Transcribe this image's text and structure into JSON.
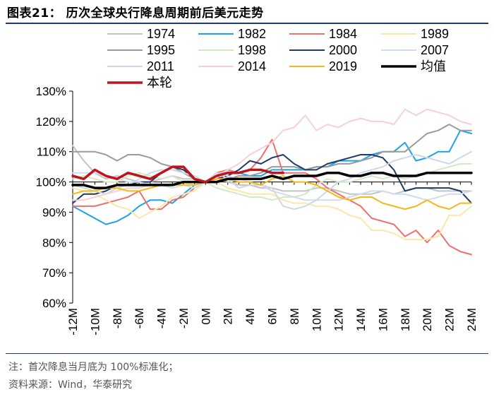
{
  "figure": {
    "title": "图表21：  历次全球央行降息周期前后美元走势",
    "note": "注：首次降息当月底为 100%标准化；",
    "source": "资料来源：Wind，华泰研究"
  },
  "chart_data": {
    "type": "line",
    "title": "历次全球央行降息周期前后美元走势",
    "xlabel": "",
    "ylabel": "",
    "ylim": [
      60,
      130
    ],
    "yticks": [
      60,
      70,
      80,
      90,
      100,
      110,
      120,
      130
    ],
    "ytick_format": "percent",
    "grid": false,
    "legend_position": "top",
    "x": [
      -12,
      -11,
      -10,
      -9,
      -8,
      -7,
      -6,
      -5,
      -4,
      -3,
      -2,
      -1,
      0,
      1,
      2,
      3,
      4,
      5,
      6,
      7,
      8,
      9,
      10,
      11,
      12,
      13,
      14,
      15,
      16,
      17,
      18,
      19,
      20,
      21,
      22,
      23,
      24
    ],
    "xtick_values": [
      -12,
      -10,
      -8,
      -6,
      -4,
      -2,
      0,
      2,
      4,
      6,
      8,
      10,
      12,
      14,
      16,
      18,
      20,
      22,
      24
    ],
    "xtick_labels": [
      "-12M",
      "-10M",
      "-8M",
      "-6M",
      "-4M",
      "-2M",
      "0M",
      "2M",
      "4M",
      "6M",
      "8M",
      "10M",
      "12M",
      "14M",
      "16M",
      "18M",
      "20M",
      "22M",
      "24M"
    ],
    "series": [
      {
        "name": "1974",
        "color": "#c3c3c3",
        "width": 2,
        "values": [
          112,
          107,
          103,
          101,
          102,
          101,
          100,
          100,
          101,
          102,
          101,
          101,
          100,
          102,
          100,
          99,
          99,
          98,
          98,
          97,
          97,
          97,
          98,
          98,
          97,
          96,
          96,
          96,
          97,
          96,
          97,
          98,
          98,
          97,
          97,
          97,
          97
        ]
      },
      {
        "name": "1982",
        "color": "#1aa3e8",
        "width": 2,
        "values": [
          92,
          90,
          88,
          86,
          87,
          89,
          92,
          94,
          94,
          93,
          96,
          99,
          100,
          102,
          103,
          103,
          102,
          102,
          104,
          104,
          104,
          104,
          105,
          105,
          107,
          107,
          107,
          109,
          110,
          110,
          113,
          107,
          108,
          110,
          110,
          117,
          116
        ]
      },
      {
        "name": "1984",
        "color": "#f06e6e",
        "width": 2,
        "values": [
          92,
          92,
          92,
          93,
          94,
          95,
          97,
          91,
          91,
          94,
          95,
          98,
          100,
          103,
          104,
          103,
          104,
          108,
          114,
          103,
          103,
          103,
          101,
          98,
          96,
          94,
          92,
          88,
          87,
          86,
          82,
          84,
          80,
          84,
          79,
          77,
          76
        ]
      },
      {
        "name": "1989",
        "color": "#fbe7a8",
        "width": 2,
        "values": [
          98,
          97,
          96,
          94,
          92,
          91,
          88,
          90,
          92,
          95,
          96,
          97,
          100,
          100,
          98,
          97,
          96,
          96,
          96,
          94,
          93,
          93,
          92,
          92,
          91,
          89,
          88,
          84,
          84,
          83,
          81,
          81,
          81,
          82,
          89,
          89,
          92
        ]
      },
      {
        "name": "1995",
        "color": "#9b9b9b",
        "width": 2,
        "values": [
          110,
          110,
          110,
          109,
          107,
          109,
          109,
          108,
          106,
          105,
          103,
          101,
          100,
          100,
          101,
          102,
          102,
          103,
          105,
          105,
          105,
          104,
          105,
          105,
          106,
          106,
          107,
          108,
          110,
          110,
          110,
          113,
          116,
          117,
          119,
          117,
          117
        ]
      },
      {
        "name": "1998",
        "color": "#d3e9c4",
        "width": 2,
        "values": [
          101,
          102,
          101,
          100,
          100,
          102,
          103,
          102,
          101,
          102,
          100,
          99,
          100,
          98,
          97,
          96,
          95,
          95,
          94,
          95,
          95,
          96,
          99,
          101,
          100,
          100,
          101,
          102,
          101,
          102,
          101,
          102,
          103,
          104,
          105,
          106,
          106
        ]
      },
      {
        "name": "2000",
        "color": "#1f3a68",
        "width": 2,
        "values": [
          93,
          96,
          96,
          97,
          99,
          99,
          100,
          100,
          103,
          105,
          104,
          101,
          100,
          101,
          102,
          104,
          107,
          106,
          108,
          109,
          106,
          104,
          104,
          106,
          107,
          108,
          109,
          109,
          108,
          104,
          97,
          98,
          98,
          98,
          98,
          97,
          93
        ]
      },
      {
        "name": "2007",
        "color": "#cfdcf0",
        "width": 2,
        "values": [
          103,
          103,
          103,
          102,
          101,
          100,
          100,
          99,
          99,
          98,
          99,
          98,
          100,
          103,
          102,
          101,
          100,
          99,
          97,
          96,
          95,
          94,
          94,
          94,
          94,
          95,
          96,
          97,
          97,
          96,
          96,
          95,
          94,
          95,
          96,
          96,
          97
        ]
      },
      {
        "name": "2011",
        "color": "#d0d8e4",
        "width": 2,
        "values": [
          99,
          98,
          97,
          96,
          98,
          99,
          101,
          103,
          104,
          104,
          103,
          102,
          100,
          103,
          101,
          98,
          99,
          99,
          98,
          92,
          91,
          92,
          94,
          97,
          100,
          101,
          103,
          104,
          105,
          107,
          108,
          109,
          108,
          107,
          106,
          108,
          110
        ]
      },
      {
        "name": "2014",
        "color": "#f8cfd6",
        "width": 2,
        "values": [
          94,
          94,
          95,
          96,
          97,
          98,
          98,
          99,
          99,
          99,
          100,
          100,
          100,
          102,
          104,
          106,
          109,
          111,
          113,
          117,
          118,
          122,
          117,
          119,
          118,
          120,
          121,
          120,
          120,
          119,
          124,
          122,
          124,
          123,
          122,
          120,
          119
        ]
      },
      {
        "name": "2019",
        "color": "#f6b718",
        "width": 2,
        "values": [
          96,
          97,
          97,
          98,
          98,
          97,
          97,
          98,
          99,
          99,
          99,
          99,
          100,
          101,
          101,
          100,
          100,
          99,
          101,
          102,
          100,
          100,
          99,
          97,
          95,
          94,
          95,
          95,
          93,
          92,
          91,
          92,
          94,
          92,
          91,
          93,
          93
        ]
      },
      {
        "name": "均值",
        "color": "#000000",
        "width": 3.5,
        "values": [
          99,
          99,
          98,
          98,
          99,
          99,
          99,
          99,
          99,
          99,
          100,
          100,
          100,
          100,
          101,
          101,
          101,
          101,
          102,
          101,
          102,
          102,
          102,
          103,
          103,
          102,
          102,
          103,
          103,
          102,
          102,
          102,
          103,
          103,
          103,
          103,
          103
        ]
      },
      {
        "name": "本轮",
        "color": "#c0141d",
        "width": 3.5,
        "values": [
          102,
          101,
          104,
          102,
          101,
          103,
          102,
          101,
          103,
          105,
          105,
          101,
          100,
          102,
          103,
          103,
          104,
          104,
          103,
          103,
          null,
          null,
          null,
          null,
          null,
          null,
          null,
          null,
          null,
          null,
          null,
          null,
          null,
          null,
          null,
          null,
          null
        ]
      }
    ]
  }
}
